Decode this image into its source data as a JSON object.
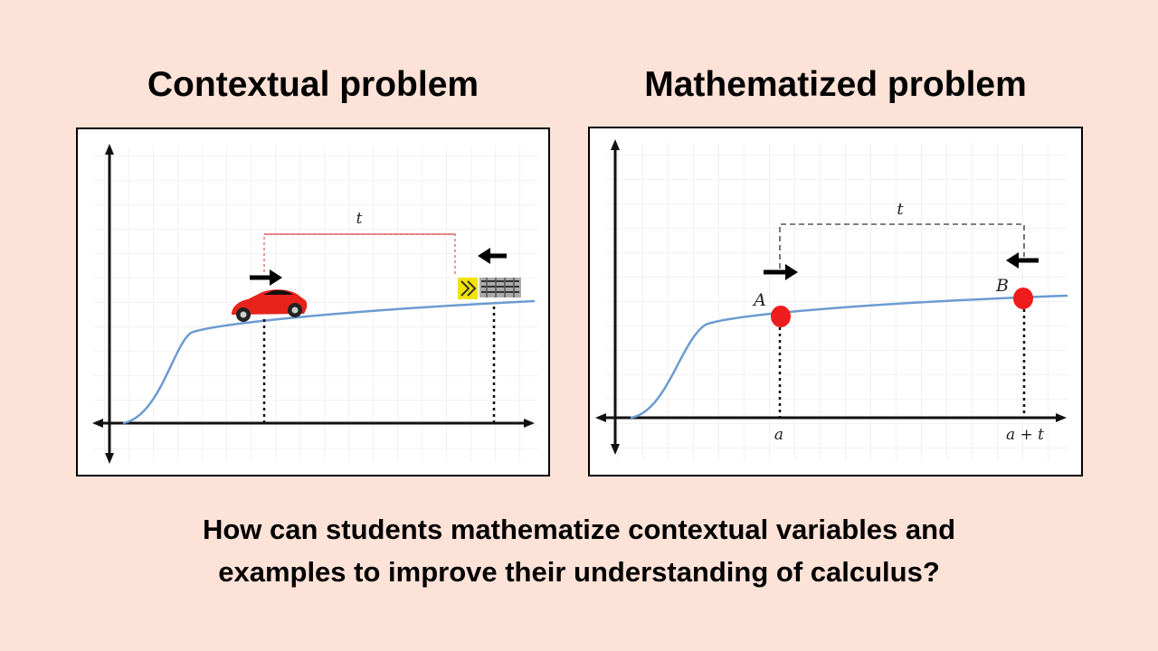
{
  "headings": {
    "left": "Contextual problem",
    "right": "Mathematized problem"
  },
  "diagram": {
    "interval_label": "t",
    "point_a_label": "A",
    "point_b_label": "B",
    "x_label_a": "a",
    "x_label_a_plus_t": "a + t"
  },
  "question": {
    "line1": "How can students mathematize contextual variables and",
    "line2": "examples to improve their understanding of calculus?"
  },
  "colors": {
    "background": "#fde2d8",
    "curve": "#6b9bd1",
    "car": "#e8231c",
    "point": "#ee1c1c",
    "bracket_left": "#e06b6b",
    "bracket_right": "#555555",
    "grid": "#e2e2e2"
  },
  "icons": [
    "car-icon",
    "truck-icon",
    "arrow-right-icon",
    "arrow-left-icon"
  ]
}
